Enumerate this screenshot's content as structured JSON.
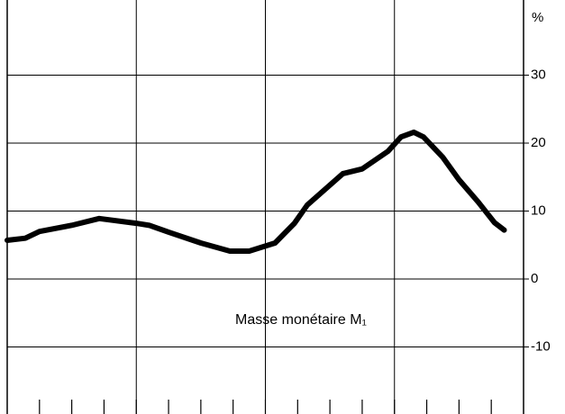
{
  "chart_data": {
    "type": "line",
    "annotation": "Masse monétaire M₁",
    "y_unit": "%",
    "x": [
      0,
      0.56,
      1,
      2,
      2.85,
      4,
      4.4,
      5,
      6,
      6.9,
      7.5,
      8.3,
      8.9,
      9.3,
      10.4,
      11,
      11.8,
      12.2,
      12.6,
      12.9,
      13.5,
      14,
      14.6,
      15.1,
      15.4
    ],
    "series": [
      {
        "color": "#000000",
        "values": [
          5.7,
          6.0,
          7.0,
          7.9,
          8.9,
          8.2,
          7.9,
          6.9,
          5.3,
          4.1,
          4.1,
          5.3,
          8.2,
          10.9,
          15.5,
          16.2,
          18.8,
          20.9,
          21.6,
          20.9,
          17.9,
          14.6,
          11.3,
          8.3,
          7.2
        ]
      }
    ],
    "xlim": [
      0,
      16
    ],
    "xticks": [
      1,
      2,
      3,
      4,
      5,
      6,
      7,
      8,
      9,
      10,
      11,
      12,
      13,
      14,
      15
    ],
    "xgrid": [
      4,
      8,
      12
    ],
    "ylim": [
      -20,
      40
    ],
    "yticks": [
      -10,
      0,
      10,
      20,
      30
    ],
    "grid": true
  }
}
